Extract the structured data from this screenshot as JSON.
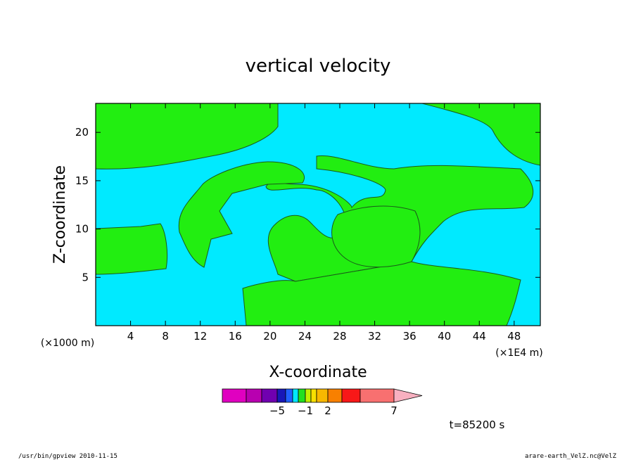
{
  "chart_data": {
    "type": "contour",
    "title": "vertical velocity",
    "xlabel": "X-coordinate",
    "ylabel": "Z-coordinate",
    "x_unit": "(×1000 m)",
    "x_unit_right": "(×1E4 m)",
    "xlim": [
      0,
      51
    ],
    "ylim": [
      0,
      23
    ],
    "x_ticks": [
      4,
      8,
      12,
      16,
      20,
      24,
      28,
      32,
      36,
      40,
      44,
      48
    ],
    "y_ticks": [
      5,
      10,
      15,
      20
    ],
    "time_label": "t=85200 s",
    "colorbar": {
      "labels": [
        {
          "text": "−5",
          "index": 3
        },
        {
          "text": "−1",
          "index": 7
        },
        {
          "text": "2",
          "index": 10
        },
        {
          "text": "7",
          "index": 13
        }
      ],
      "colors": [
        "#e000c0",
        "#b800b0",
        "#7000b0",
        "#1818b8",
        "#2060ff",
        "#00e8ff",
        "#20e020",
        "#c0f000",
        "#f8e000",
        "#f8b800",
        "#f88000",
        "#f81818",
        "#f87070"
      ],
      "arrow_color": "#f8b0c0"
    },
    "colors": {
      "background_field": "#00eaff",
      "positive_region": "#22ee11"
    },
    "grid": false
  },
  "footer": {
    "left": "/usr/bin/gpview  2010-11-15",
    "right": "arare-earth_VelZ.nc@VelZ"
  }
}
